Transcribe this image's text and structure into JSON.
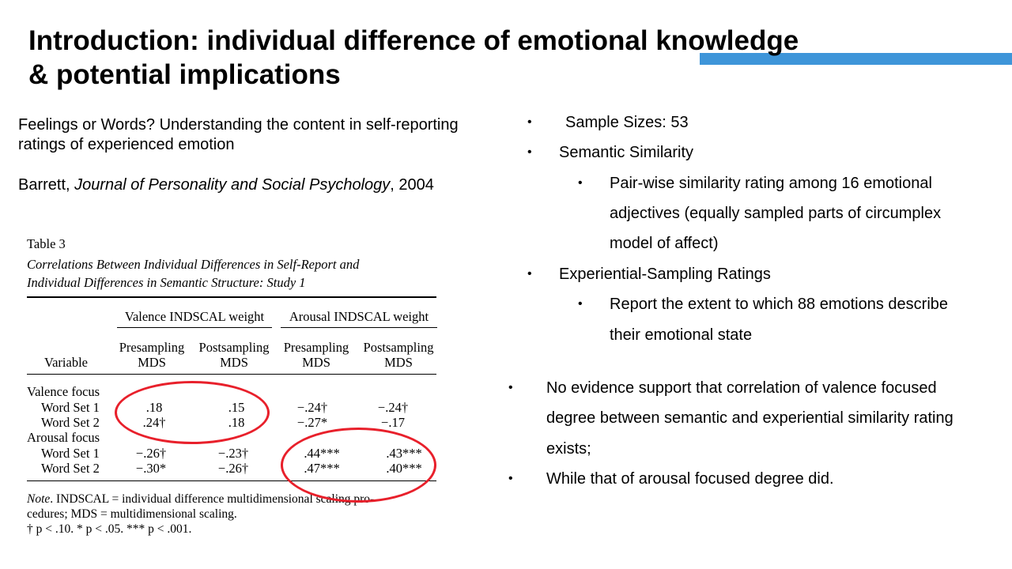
{
  "slide": {
    "title_line1": "Introduction: individual difference of emotional knowledge",
    "title_line2": "& potential implications",
    "accent_color": "#3e95d9"
  },
  "paper": {
    "title_line1": "Feelings or Words? Understanding the content in self-reporting",
    "title_line2": "ratings of experienced emotion",
    "author": "Barrett, ",
    "journal": "Journal of Personality and Social Psychology",
    "year": ", 2004"
  },
  "table": {
    "label": "Table 3",
    "caption_line1": "Correlations Between Individual Differences in Self-Report and",
    "caption_line2": "Individual Differences in Semantic Structure: Study 1",
    "group_valence": "Valence INDSCAL weight",
    "group_arousal": "Arousal INDSCAL weight",
    "col_variable": "Variable",
    "col_pre": "Presampling",
    "col_post": "Postsampling",
    "col_mds": "MDS",
    "section_valence": "Valence focus",
    "section_arousal": "Arousal focus",
    "rows": [
      {
        "label": "Word Set 1",
        "v_pre": ".18",
        "v_post": ".15",
        "a_pre": "−.24†",
        "a_post": "−.24†"
      },
      {
        "label": "Word Set 2",
        "v_pre": ".24†",
        "v_post": ".18",
        "a_pre": "−.27*",
        "a_post": "−.17"
      },
      {
        "label": "Word Set 1",
        "v_pre": "−.26†",
        "v_post": "−.23†",
        "a_pre": ".44***",
        "a_post": ".43***"
      },
      {
        "label": "Word Set 2",
        "v_pre": "−.30*",
        "v_post": "−.26†",
        "a_pre": ".47***",
        "a_post": ".40***"
      }
    ],
    "note_prefix": "Note",
    "note_line1": ".   INDSCAL = individual difference multidimensional scaling pro-",
    "note_line2": "cedures; MDS = multidimensional scaling.",
    "note_line3": "† p < .10.   * p < .05.   *** p < .001.",
    "highlight_color": "#e8202b"
  },
  "bullets": {
    "marker": "•",
    "sample_sizes": "Sample Sizes: 53",
    "semantic_similarity": "Semantic Similarity",
    "semantic_detail_line1": "Pair-wise similarity rating among 16 emotional",
    "semantic_detail_line2": "adjectives (equally sampled parts of circumplex",
    "semantic_detail_line3": "model of affect)",
    "experiential": "Experiential-Sampling Ratings",
    "experiential_detail_line1": "Report the extent to which 88 emotions describe",
    "experiential_detail_line2": "their emotional state",
    "finding1_line1": "No evidence support that correlation of valence focused",
    "finding1_line2": "degree between semantic and experiential similarity rating",
    "finding1_line3": "exists;",
    "finding2": "While that of arousal focused degree did."
  }
}
